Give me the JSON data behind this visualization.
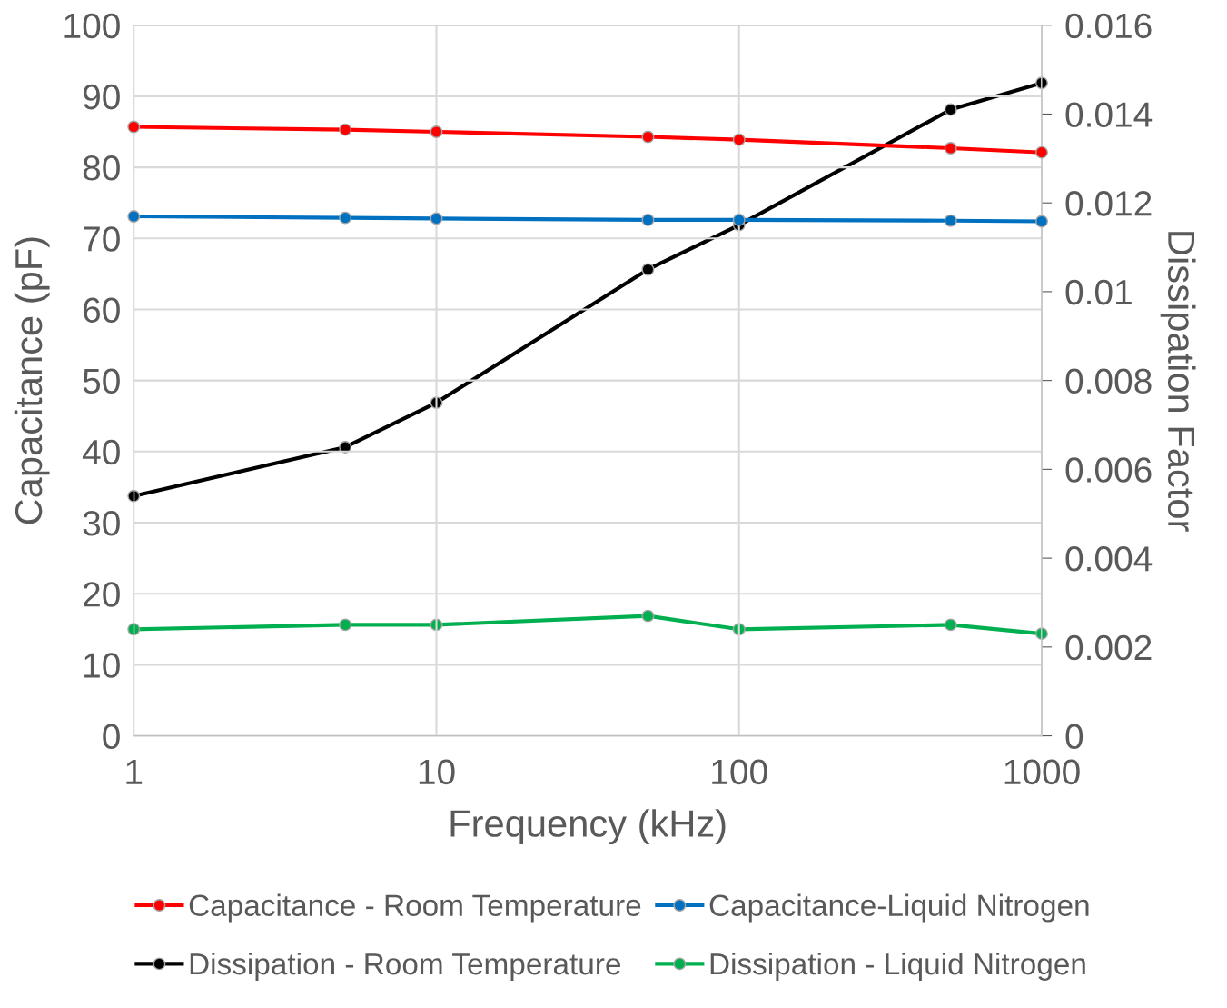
{
  "chart_data": {
    "type": "line",
    "xlabel": "Frequency (kHz)",
    "ylabel": "Capacitance (pF)",
    "y2label": "Dissipation Factor",
    "x": [
      1,
      5,
      10,
      50,
      100,
      500,
      1000
    ],
    "log": "x",
    "xlim": [
      1,
      1000
    ],
    "xticks": [
      1,
      10,
      100,
      1000
    ],
    "ylim": [
      0,
      100
    ],
    "yticks": [
      0,
      10,
      20,
      30,
      40,
      50,
      60,
      70,
      80,
      90,
      100
    ],
    "y2lim": [
      0,
      0.016
    ],
    "y2ticks": [
      0,
      0.002,
      0.004,
      0.006,
      0.008,
      0.01,
      0.012,
      0.014,
      0.016
    ],
    "grid": true,
    "legend": "bottom",
    "marker": "circle",
    "line_style": "solid",
    "series": [
      {
        "name": "Capacitance - Room Temperature",
        "color": "#ff0000",
        "values": [
          85.7,
          85.3,
          85.0,
          84.3,
          83.9,
          82.7,
          82.1
        ]
      },
      {
        "name": "Capacitance-Liquid Nitrogen",
        "color": "#0070c0",
        "values": [
          73.1,
          72.9,
          72.8,
          72.6,
          72.6,
          72.5,
          72.4
        ]
      },
      {
        "name": "Dissipation - Room Temperature",
        "color": "#000000",
        "axis": "y2",
        "values": [
          0.0054,
          0.0065,
          0.0075,
          0.0105,
          0.0115,
          0.0141,
          0.0147
        ]
      },
      {
        "name": "Dissipation - Liquid Nitrogen",
        "color": "#00b050",
        "axis": "y2",
        "values": [
          0.0024,
          0.0025,
          0.0025,
          0.0027,
          0.0024,
          0.0025,
          0.0023
        ]
      }
    ]
  }
}
